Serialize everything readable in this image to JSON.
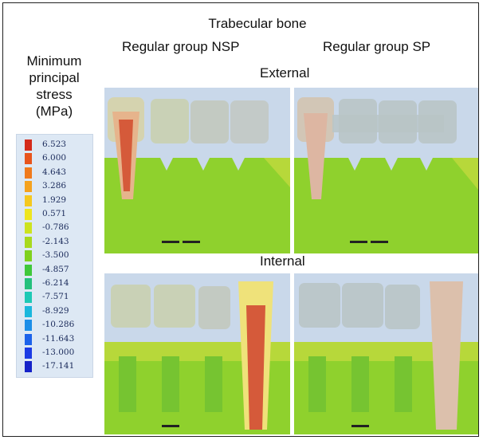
{
  "header": {
    "title": "Trabecular bone",
    "col_left": "Regular group NSP",
    "col_right": "Regular group SP",
    "row_top": "External",
    "row_bottom": "Internal"
  },
  "legend": {
    "title_lines": [
      "Minimum",
      "principal",
      "stress",
      "(MPa)"
    ],
    "items": [
      {
        "value": "6.523",
        "color": "#d42a1a"
      },
      {
        "value": "6.000",
        "color": "#e8541c"
      },
      {
        "value": "4.643",
        "color": "#f07a1c"
      },
      {
        "value": "3.286",
        "color": "#f5a21e"
      },
      {
        "value": "1.929",
        "color": "#f5c81f"
      },
      {
        "value": "0.571",
        "color": "#eee51f"
      },
      {
        "value": "-0.786",
        "color": "#cde31f"
      },
      {
        "value": "-2.143",
        "color": "#a8d91e"
      },
      {
        "value": "-3.500",
        "color": "#7fd11e"
      },
      {
        "value": "-4.857",
        "color": "#3fc83a"
      },
      {
        "value": "-6.214",
        "color": "#24c07c"
      },
      {
        "value": "-7.571",
        "color": "#1dc9b5"
      },
      {
        "value": "-8.929",
        "color": "#1ab7dc"
      },
      {
        "value": "-10.286",
        "color": "#1c8ee8"
      },
      {
        "value": "-11.643",
        "color": "#1c62ea"
      },
      {
        "value": "-13.000",
        "color": "#1b3be4"
      },
      {
        "value": "-17.141",
        "color": "#1522c8"
      }
    ]
  },
  "colors": {
    "background_sky": "#c9d8ea",
    "bone_green": "#8fd12d",
    "bone_yellowgreen": "#b7d83a",
    "crown": "#c9d0b0",
    "implant_red": "#e05a3a"
  }
}
